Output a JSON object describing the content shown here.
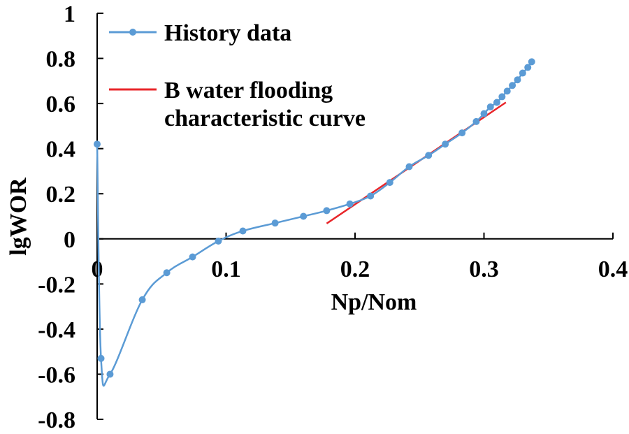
{
  "chart_data": {
    "type": "line",
    "title": "",
    "xlabel": "Np/Nom",
    "ylabel": "lgWOR",
    "xlim": [
      0,
      0.4
    ],
    "ylim": [
      -0.8,
      1
    ],
    "x_ticks": [
      0,
      0.1,
      0.2,
      0.3,
      0.4
    ],
    "x_tick_labels": [
      "0",
      "0.1",
      "0.2",
      "0.3",
      "0.4"
    ],
    "y_ticks": [
      -0.8,
      -0.6,
      -0.4,
      -0.2,
      0,
      0.2,
      0.4,
      0.6,
      0.8,
      1
    ],
    "y_tick_labels": [
      "-0.8",
      "-0.6",
      "-0.4",
      "-0.2",
      "0",
      "0.2",
      "0.4",
      "0.6",
      "0.8",
      "1"
    ],
    "grid": false,
    "legend_position": "top-left",
    "series": [
      {
        "name": "History data",
        "type": "line-markers",
        "smooth": true,
        "color": "#5b9bd5",
        "x": [
          0,
          0.003,
          0.01,
          0.035,
          0.054,
          0.074,
          0.094,
          0.113,
          0.138,
          0.16,
          0.178,
          0.196,
          0.212,
          0.227,
          0.242,
          0.257,
          0.27,
          0.283,
          0.294,
          0.3,
          0.305,
          0.31,
          0.314,
          0.318,
          0.322,
          0.326,
          0.33,
          0.334,
          0.337
        ],
        "y": [
          0.42,
          -0.53,
          -0.6,
          -0.27,
          -0.15,
          -0.08,
          -0.01,
          0.035,
          0.07,
          0.1,
          0.125,
          0.155,
          0.19,
          0.25,
          0.32,
          0.37,
          0.42,
          0.47,
          0.52,
          0.555,
          0.585,
          0.605,
          0.63,
          0.655,
          0.68,
          0.705,
          0.735,
          0.76,
          0.785
        ]
      },
      {
        "name": "B water flooding characteristic curve",
        "legend_lines": [
          "B water flooding",
          "characteristic curve"
        ],
        "type": "line",
        "smooth": false,
        "color": "#e8262a",
        "x": [
          0.178,
          0.317
        ],
        "y": [
          0.068,
          0.605
        ]
      }
    ]
  }
}
